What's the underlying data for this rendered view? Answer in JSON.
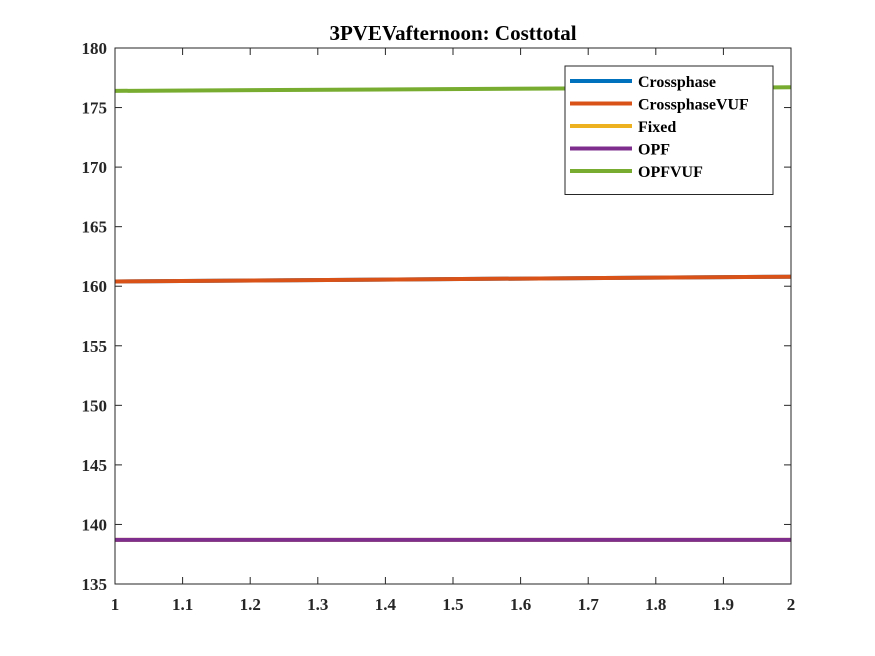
{
  "chart_data": {
    "type": "line",
    "title": "3PVEVafternoon: Costtotal",
    "xlabel": "",
    "ylabel": "",
    "xlim": [
      1,
      2
    ],
    "ylim": [
      135,
      180
    ],
    "x_ticks": [
      1,
      1.1,
      1.2,
      1.3,
      1.4,
      1.5,
      1.6,
      1.7,
      1.8,
      1.9,
      2
    ],
    "x_tick_labels": [
      "1",
      "1.1",
      "1.2",
      "1.3",
      "1.4",
      "1.5",
      "1.6",
      "1.7",
      "1.8",
      "1.9",
      "2"
    ],
    "y_ticks": [
      135,
      140,
      145,
      150,
      155,
      160,
      165,
      170,
      175,
      180
    ],
    "y_tick_labels": [
      "135",
      "140",
      "145",
      "150",
      "155",
      "160",
      "165",
      "170",
      "175",
      "180"
    ],
    "grid": false,
    "legend_position": "top-right",
    "series": [
      {
        "name": "Crossphase",
        "color": "#0072BD",
        "x": [
          1,
          2
        ],
        "y": [
          160.4,
          160.8
        ]
      },
      {
        "name": "CrossphaseVUF",
        "color": "#D95319",
        "x": [
          1,
          2
        ],
        "y": [
          160.4,
          160.8
        ]
      },
      {
        "name": "Fixed",
        "color": "#EDB120",
        "x": [
          1,
          2
        ],
        "y": [
          138.7,
          138.7
        ]
      },
      {
        "name": "OPF",
        "color": "#7E2F8E",
        "x": [
          1,
          2
        ],
        "y": [
          138.7,
          138.7
        ]
      },
      {
        "name": "OPFVUF",
        "color": "#77AC30",
        "x": [
          1,
          2
        ],
        "y": [
          176.4,
          176.7
        ]
      }
    ]
  }
}
